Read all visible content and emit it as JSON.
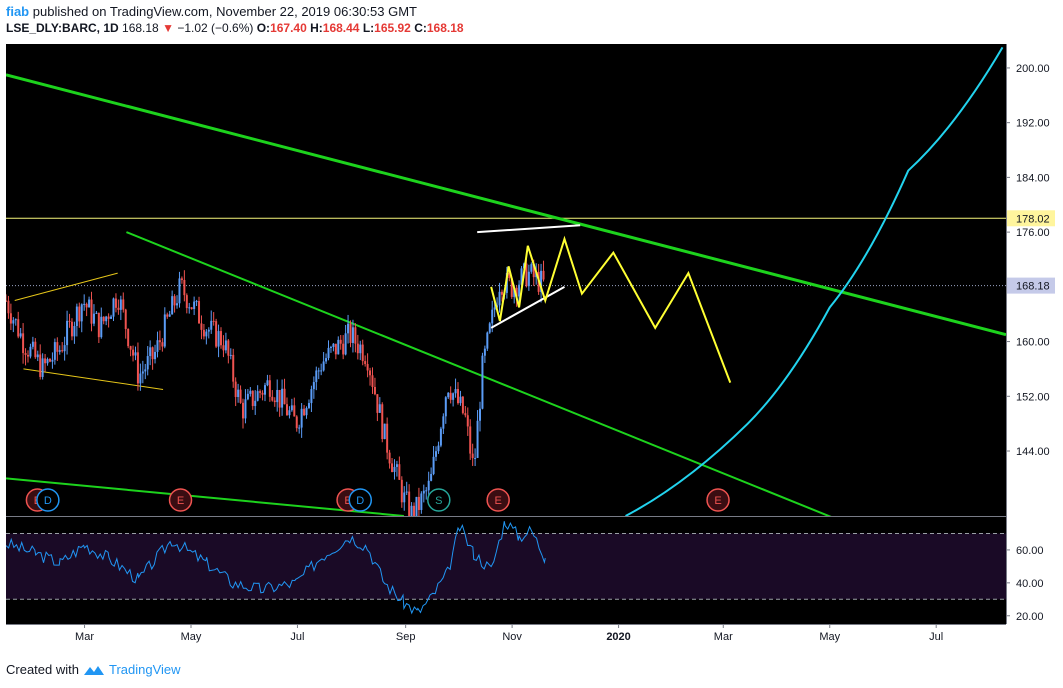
{
  "header": {
    "user": "fiab",
    "published_text": "published on TradingView.com, November 22, 2019 06:30:53 GMT",
    "symbol": "LSE_DLY:BARC, 1D",
    "last": "168.18",
    "change_arrow": "▼",
    "change": "−1.02 (−0.6%)",
    "o_label": "O:",
    "o_value": "167.40",
    "h_label": "H:",
    "h_value": "168.44",
    "l_label": "L:",
    "l_value": "165.92",
    "c_label": "C:",
    "c_value": "168.18"
  },
  "footer": {
    "created_with": "Created with",
    "brand": "TradingView"
  },
  "colors": {
    "background": "#000000",
    "bull": "#5b9cf6",
    "bear": "#ef5350",
    "trendline": "#1dd31d",
    "arc": "#22d3ee",
    "projection": "#ffff33",
    "rsi_line": "#2196f3",
    "rsi_band": "#1a0a26",
    "event_e": "#ef5350",
    "event_d": "#2196f3",
    "event_s": "#26a69a"
  },
  "chart_data": {
    "type": "line",
    "title": "LSE_DLY:BARC, 1D",
    "price_axis": {
      "ticks": [
        "200.00",
        "192.00",
        "184.00",
        "176.00",
        "160.00",
        "152.00",
        "144.00"
      ],
      "ylim": [
        134.5,
        203.5
      ]
    },
    "time_axis": {
      "ticks": [
        "Mar",
        "May",
        "Jul",
        "Sep",
        "Nov",
        "2020",
        "Mar",
        "May",
        "Jul"
      ],
      "range": [
        "2019-01-15",
        "2020-08-10"
      ]
    },
    "horizontal_level": "178.02",
    "last_price": "168.18",
    "price_series": {
      "name": "",
      "points": [
        [
          "2019-01-15",
          166
        ],
        [
          "2019-01-25",
          160
        ],
        [
          "2019-02-05",
          156
        ],
        [
          "2019-02-15",
          159
        ],
        [
          "2019-02-28",
          166
        ],
        [
          "2019-03-10",
          162
        ],
        [
          "2019-03-20",
          167
        ],
        [
          "2019-04-01",
          155
        ],
        [
          "2019-04-10",
          158
        ],
        [
          "2019-04-25",
          168
        ],
        [
          "2019-05-10",
          162
        ],
        [
          "2019-05-20",
          160
        ],
        [
          "2019-05-30",
          150
        ],
        [
          "2019-06-15",
          154
        ],
        [
          "2019-06-30",
          148
        ],
        [
          "2019-07-15",
          157
        ],
        [
          "2019-07-31",
          161
        ],
        [
          "2019-08-10",
          158
        ],
        [
          "2019-08-20",
          146
        ],
        [
          "2019-08-31",
          137
        ],
        [
          "2019-09-05",
          134.5
        ],
        [
          "2019-09-15",
          139
        ],
        [
          "2019-09-25",
          154
        ],
        [
          "2019-10-05",
          149
        ],
        [
          "2019-10-10",
          141
        ],
        [
          "2019-10-15",
          156
        ],
        [
          "2019-10-25",
          169
        ],
        [
          "2019-11-01",
          168
        ],
        [
          "2019-11-10",
          170
        ],
        [
          "2019-11-20",
          168.18
        ]
      ]
    },
    "projection_path": [
      [
        "2019-10-20",
        168
      ],
      [
        "2019-10-25",
        163
      ],
      [
        "2019-10-30",
        171
      ],
      [
        "2019-11-05",
        165
      ],
      [
        "2019-11-10",
        174
      ],
      [
        "2019-11-20",
        166
      ],
      [
        "2019-12-01",
        175
      ],
      [
        "2019-12-11",
        167
      ],
      [
        "2019-12-29",
        173
      ],
      [
        "2020-01-22",
        162
      ],
      [
        "2020-02-10",
        170
      ],
      [
        "2020-03-05",
        154
      ]
    ],
    "trendlines": [
      {
        "kind": "upper-channel",
        "points": [
          [
            "2019-01-15",
            199
          ],
          [
            "2020-08-10",
            161
          ]
        ]
      },
      {
        "kind": "mid-channel",
        "points": [
          [
            "2019-03-25",
            176
          ],
          [
            "2020-05-15",
            133
          ]
        ]
      },
      {
        "kind": "lower-channel",
        "points": [
          [
            "2019-01-15",
            140
          ],
          [
            "2019-08-31",
            134.5
          ]
        ]
      }
    ],
    "wedge_lines": [
      {
        "points": [
          [
            "2019-10-12",
            176
          ],
          [
            "2019-12-10",
            177
          ]
        ]
      },
      {
        "points": [
          [
            "2019-10-20",
            162
          ],
          [
            "2019-12-01",
            168
          ]
        ]
      }
    ],
    "early_wedge_lines": [
      {
        "points": [
          [
            "2019-01-20",
            166
          ],
          [
            "2019-03-20",
            170
          ]
        ]
      },
      {
        "points": [
          [
            "2019-01-25",
            156
          ],
          [
            "2019-04-15",
            153
          ]
        ]
      }
    ],
    "arc": {
      "points": [
        [
          "2020-01-05",
          134.5
        ],
        [
          "2020-03-15",
          148
        ],
        [
          "2020-05-01",
          165
        ],
        [
          "2020-06-15",
          185
        ],
        [
          "2020-08-08",
          203
        ]
      ]
    },
    "events": [
      {
        "date": "2019-02-02",
        "label": "E"
      },
      {
        "date": "2019-02-08",
        "label": "D"
      },
      {
        "date": "2019-04-25",
        "label": "E"
      },
      {
        "date": "2019-07-30",
        "label": "E"
      },
      {
        "date": "2019-08-06",
        "label": "D"
      },
      {
        "date": "2019-09-20",
        "label": "S"
      },
      {
        "date": "2019-10-24",
        "label": "E"
      },
      {
        "date": "2020-02-27",
        "label": "E"
      }
    ],
    "rsi": {
      "ticks": [
        "60.00",
        "40.00",
        "20.00"
      ],
      "ylim": [
        15,
        80
      ],
      "band": [
        30,
        70
      ],
      "points": [
        [
          "2019-01-15",
          64
        ],
        [
          "2019-02-01",
          58
        ],
        [
          "2019-02-15",
          52
        ],
        [
          "2019-03-01",
          63
        ],
        [
          "2019-03-15",
          55
        ],
        [
          "2019-04-01",
          42
        ],
        [
          "2019-04-20",
          66
        ],
        [
          "2019-05-10",
          52
        ],
        [
          "2019-05-25",
          40
        ],
        [
          "2019-06-10",
          36
        ],
        [
          "2019-06-30",
          40
        ],
        [
          "2019-07-15",
          56
        ],
        [
          "2019-07-31",
          68
        ],
        [
          "2019-08-10",
          62
        ],
        [
          "2019-08-20",
          40
        ],
        [
          "2019-08-31",
          28
        ],
        [
          "2019-09-08",
          22
        ],
        [
          "2019-09-15",
          30
        ],
        [
          "2019-09-25",
          46
        ],
        [
          "2019-10-02",
          74
        ],
        [
          "2019-10-10",
          58
        ],
        [
          "2019-10-20",
          48
        ],
        [
          "2019-10-28",
          78
        ],
        [
          "2019-11-05",
          68
        ],
        [
          "2019-11-12",
          72
        ],
        [
          "2019-11-20",
          55
        ]
      ]
    }
  }
}
